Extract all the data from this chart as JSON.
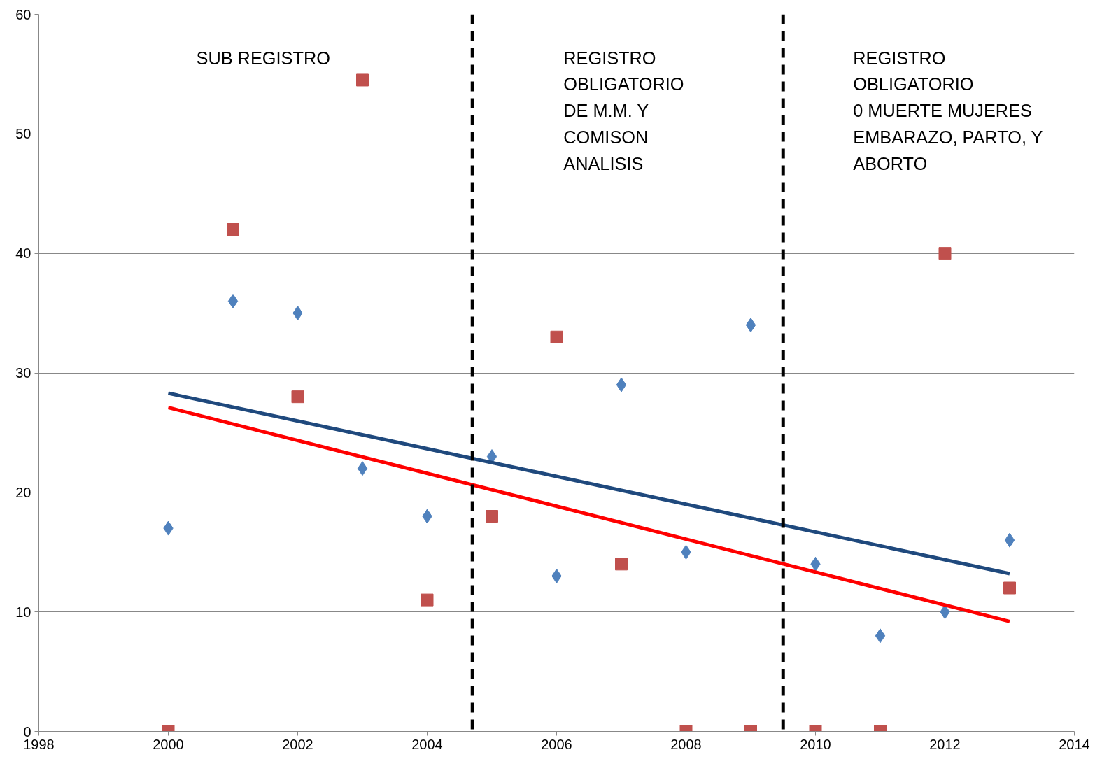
{
  "chart_data": {
    "type": "scatter",
    "xlim": [
      1998,
      2014
    ],
    "xticks": [
      1998,
      2000,
      2002,
      2004,
      2006,
      2008,
      2010,
      2012,
      2014
    ],
    "ylim": [
      0,
      60
    ],
    "yticks": [
      0,
      10,
      20,
      30,
      40,
      50,
      60
    ],
    "grid": "y",
    "series": [
      {
        "marker": "diamond",
        "color": "#4f81bd",
        "x": [
          2000,
          2001,
          2002,
          2003,
          2004,
          2005,
          2006,
          2007,
          2008,
          2009,
          2010,
          2011,
          2012,
          2013
        ],
        "values": [
          17,
          36,
          35,
          22,
          18,
          23,
          13,
          29,
          15,
          34,
          14,
          8,
          10,
          16
        ]
      },
      {
        "marker": "square",
        "color": "#c0504d",
        "x": [
          2000,
          2001,
          2002,
          2003,
          2004,
          2005,
          2006,
          2007,
          2008,
          2009,
          2010,
          2011,
          2012,
          2013
        ],
        "values": [
          0,
          42,
          28,
          54.5,
          11,
          18,
          33,
          14,
          0,
          0,
          0,
          0,
          40,
          12
        ]
      },
      {
        "type": "line",
        "color": "#1f497d",
        "x": [
          2000,
          2013
        ],
        "values": [
          28.3,
          13.2
        ]
      },
      {
        "type": "line",
        "color": "#ff0000",
        "x": [
          2000,
          2013
        ],
        "values": [
          27.1,
          9.2
        ]
      }
    ],
    "ref_lines": [
      {
        "axis": "x",
        "value": 2004.7,
        "color": "#000000",
        "line_style": "dashed"
      },
      {
        "axis": "x",
        "value": 2009.5,
        "color": "#000000",
        "line_style": "dashed"
      }
    ],
    "annotations": [
      "SUB REGISTRO",
      "REGISTRO\nOBLIGATORIO\nDE M.M. Y\nCOMISON\nANALISIS",
      "REGISTRO\nOBLIGATORIO\n0 MUERTE MUJERES\nEMBARAZO, PARTO, Y\nABORTO"
    ]
  }
}
